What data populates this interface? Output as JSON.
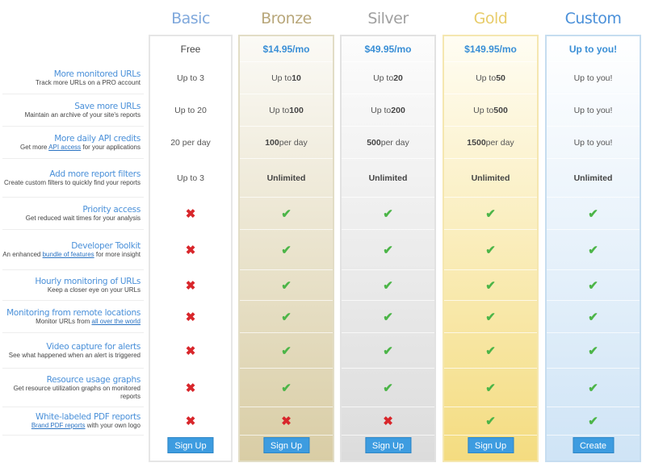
{
  "plans": [
    {
      "id": "basic",
      "name": "Basic",
      "price": "Free",
      "button": "Sign Up",
      "title_color": "#7fa8dc",
      "border": "#e6e6e6",
      "bg": [
        "#ffffff",
        "#ffffff"
      ]
    },
    {
      "id": "bronze",
      "name": "Bronze",
      "price": "$14.95/mo",
      "button": "Sign Up",
      "title_color": "#b8a77a",
      "border": "#e2ddc6",
      "bg": [
        "#fbfaf6",
        "#d9cda5"
      ]
    },
    {
      "id": "silver",
      "name": "Silver",
      "price": "$49.95/mo",
      "button": "Sign Up",
      "title_color": "#a0a0a0",
      "border": "#e2e2e2",
      "bg": [
        "#fcfcfc",
        "#dcdcdc"
      ]
    },
    {
      "id": "gold",
      "name": "Gold",
      "price": "$149.95/mo",
      "button": "Sign Up",
      "title_color": "#e8cc6a",
      "border": "#f5e7b0",
      "bg": [
        "#fffdf3",
        "#f4dc80"
      ]
    },
    {
      "id": "custom",
      "name": "Custom",
      "price": "Up to you!",
      "button": "Create",
      "title_color": "#4a90d9",
      "border": "#c6ddf0",
      "bg": [
        "#ffffff",
        "#cfe4f6"
      ]
    }
  ],
  "features": [
    {
      "title": "More monitored URLs",
      "desc": [
        "Track more URLs on a PRO account"
      ],
      "values": [
        [
          "Up to 3"
        ],
        [
          "Up to ",
          "10"
        ],
        [
          "Up to ",
          "20"
        ],
        [
          "Up to ",
          "50"
        ],
        [
          "Up to you!"
        ]
      ]
    },
    {
      "title": "Save more URLs",
      "desc": [
        "Maintain an archive of your site's reports"
      ],
      "values": [
        [
          "Up to 20"
        ],
        [
          "Up to ",
          "100"
        ],
        [
          "Up to ",
          "200"
        ],
        [
          "Up to ",
          "500"
        ],
        [
          "Up to you!"
        ]
      ]
    },
    {
      "title": "More daily API credits",
      "desc": [
        "Get more ",
        "API access",
        " for your applications"
      ],
      "values": [
        [
          "20 per day"
        ],
        [
          "",
          "100",
          " per day"
        ],
        [
          "",
          "500",
          " per day"
        ],
        [
          "",
          "1500",
          " per day"
        ],
        [
          "Up to you!"
        ]
      ]
    },
    {
      "title": "Add more report filters",
      "desc": [
        "Create custom filters to quickly find your reports"
      ],
      "values": [
        [
          "Up to 3"
        ],
        [
          "",
          "Unlimited"
        ],
        [
          "",
          "Unlimited"
        ],
        [
          "",
          "Unlimited"
        ],
        [
          "",
          "Unlimited"
        ]
      ]
    },
    {
      "title": "Priority access",
      "desc": [
        "Get reduced wait times for your analysis"
      ],
      "values": [
        false,
        true,
        true,
        true,
        true
      ]
    },
    {
      "title": "Developer Toolkit",
      "desc": [
        "An enhanced ",
        "bundle of features",
        " for more insight"
      ],
      "values": [
        false,
        true,
        true,
        true,
        true
      ]
    },
    {
      "title": "Hourly monitoring of URLs",
      "desc": [
        "Keep a closer eye on your URLs"
      ],
      "values": [
        false,
        true,
        true,
        true,
        true
      ]
    },
    {
      "title": "Monitoring from remote locations",
      "desc": [
        "Monitor URLs from ",
        "all over the world"
      ],
      "values": [
        false,
        true,
        true,
        true,
        true
      ]
    },
    {
      "title": "Video capture for alerts",
      "desc": [
        "See what happened when an alert is triggered"
      ],
      "values": [
        false,
        true,
        true,
        true,
        true
      ]
    },
    {
      "title": "Resource usage graphs",
      "desc": [
        "Get resource utilization graphs on monitored reports"
      ],
      "values": [
        false,
        true,
        true,
        true,
        true
      ]
    },
    {
      "title": "White-labeled PDF reports",
      "desc": [
        "",
        "Brand PDF reports",
        " with your own logo"
      ],
      "values": [
        false,
        false,
        false,
        true,
        true
      ]
    }
  ],
  "icons": {
    "yes": "check-icon",
    "no": "cross-icon"
  }
}
